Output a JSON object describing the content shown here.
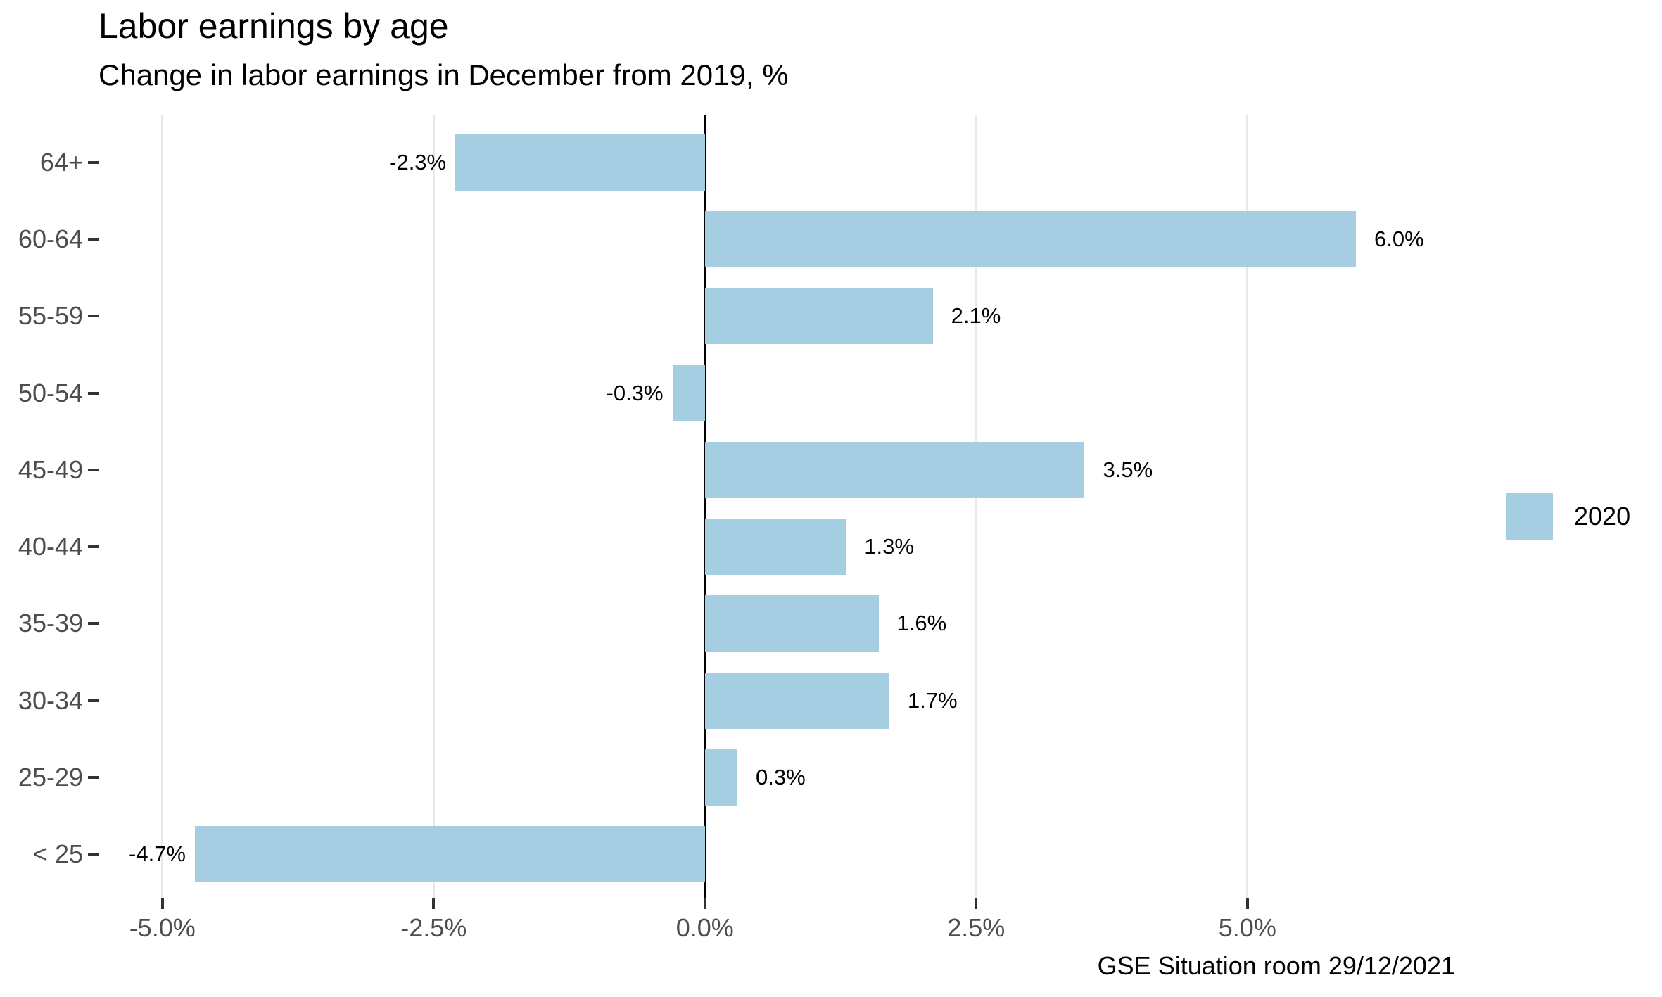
{
  "chart_data": {
    "type": "bar",
    "orientation": "horizontal",
    "title": "Labor earnings by age",
    "subtitle": "Change in labor earnings in December from 2019, %",
    "caption": "GSE Situation room 29/12/2021",
    "categories": [
      "64+",
      "60-64",
      "55-59",
      "50-54",
      "45-49",
      "40-44",
      "35-39",
      "30-34",
      "25-29",
      "< 25"
    ],
    "values": [
      -2.3,
      6.0,
      2.1,
      -0.3,
      3.5,
      1.3,
      1.6,
      1.7,
      0.3,
      -4.7
    ],
    "value_labels": [
      "-2.3%",
      "6.0%",
      "2.1%",
      "-0.3%",
      "3.5%",
      "1.3%",
      "1.6%",
      "1.7%",
      "0.3%",
      "-4.7%"
    ],
    "x_ticks": [
      {
        "value": -5.0,
        "label": "-5.0%"
      },
      {
        "value": -2.5,
        "label": "-2.5%"
      },
      {
        "value": 0.0,
        "label": "0.0%"
      },
      {
        "value": 2.5,
        "label": "2.5%"
      },
      {
        "value": 5.0,
        "label": "5.0%"
      }
    ],
    "xlim": [
      -5.53,
      7.18
    ],
    "grid": "vertical-major-only",
    "legend": {
      "position": "right",
      "label": "2020"
    },
    "colors": {
      "bar": "#a6cee3",
      "grid": "#e8e8e8",
      "zero_line": "#000000",
      "tick": "#333333",
      "axis_text": "#4d4d4d",
      "text": "#000000"
    }
  }
}
